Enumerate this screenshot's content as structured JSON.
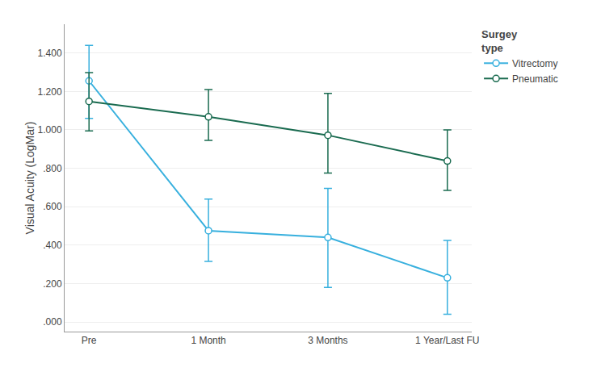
{
  "chart_data": {
    "type": "line",
    "categories": [
      "Pre",
      "1 Month",
      "3 Months",
      "1 Year/Last FU"
    ],
    "series": [
      {
        "name": "Vitrectomy",
        "color": "#38B0DE",
        "marker": "circle",
        "values": [
          1.255,
          0.475,
          0.44,
          0.23
        ],
        "error_high": [
          1.44,
          0.64,
          0.695,
          0.425
        ],
        "error_low": [
          1.06,
          0.315,
          0.18,
          0.04
        ]
      },
      {
        "name": "Pneumatic",
        "color": "#1A6B50",
        "marker": "circle",
        "values": [
          1.148,
          1.068,
          0.972,
          0.838
        ],
        "error_high": [
          1.298,
          1.21,
          1.19,
          1.0
        ],
        "error_low": [
          0.995,
          0.945,
          0.775,
          0.685
        ]
      }
    ],
    "y_label": "Visual Acuity (LogMar)",
    "legend_title": "Surgey\ntype",
    "legend": "right",
    "ylim": [
      -0.05,
      1.55
    ],
    "yticks": [
      {
        "value": 0.0,
        "label": ".000"
      },
      {
        "value": 0.2,
        "label": ".200"
      },
      {
        "value": 0.4,
        "label": ".400"
      },
      {
        "value": 0.6,
        "label": ".600"
      },
      {
        "value": 0.8,
        "label": ".800"
      },
      {
        "value": 1.0,
        "label": "1.000"
      },
      {
        "value": 1.2,
        "label": "1.200"
      },
      {
        "value": 1.4,
        "label": "1.400"
      }
    ],
    "grid": true
  }
}
